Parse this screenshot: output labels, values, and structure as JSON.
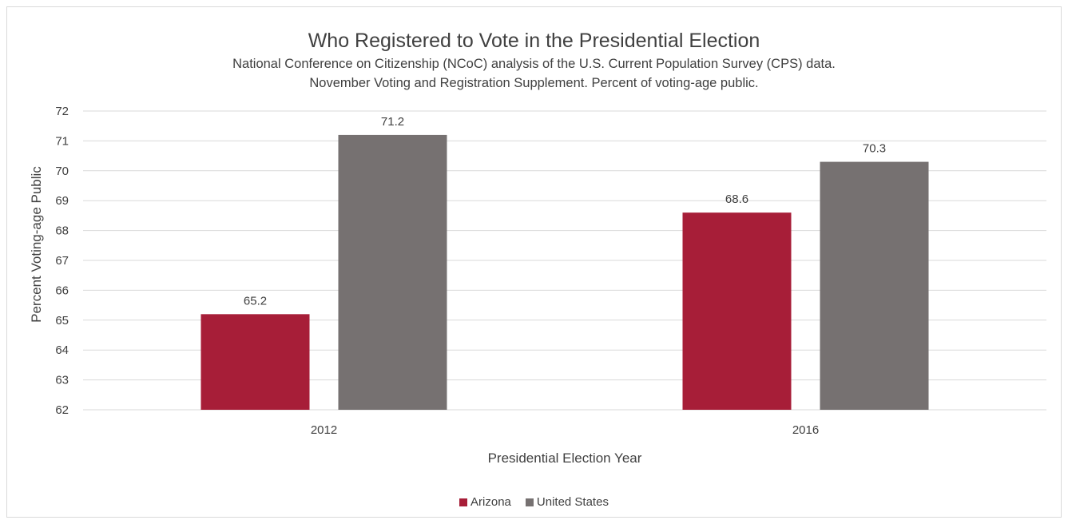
{
  "colors": {
    "arizona": "#a71e38",
    "united_states": "#767171",
    "grid": "#d9d9d9",
    "text": "#404040"
  },
  "chart_data": {
    "type": "bar",
    "title": "Who Registered to Vote in the Presidential Election",
    "subtitle": [
      "National Conference on Citizenship (NCoC) analysis of the U.S. Current Population Survey (CPS) data.",
      "November Voting and Registration Supplement. Percent of voting-age public."
    ],
    "xlabel": "Presidential Election Year",
    "ylabel": "Percent Voting-age Public",
    "categories": [
      "2012",
      "2016"
    ],
    "series": [
      {
        "name": "Arizona",
        "values": [
          65.2,
          68.6
        ]
      },
      {
        "name": "United States",
        "values": [
          71.2,
          70.3
        ]
      }
    ],
    "ylim": [
      62,
      72
    ],
    "yticks": [
      "62",
      "63",
      "64",
      "65",
      "66",
      "67",
      "68",
      "69",
      "70",
      "71",
      "72"
    ],
    "data_labels": [
      [
        "65.2",
        "68.6"
      ],
      [
        "71.2",
        "70.3"
      ]
    ],
    "grid": true,
    "legend_position": "bottom"
  }
}
